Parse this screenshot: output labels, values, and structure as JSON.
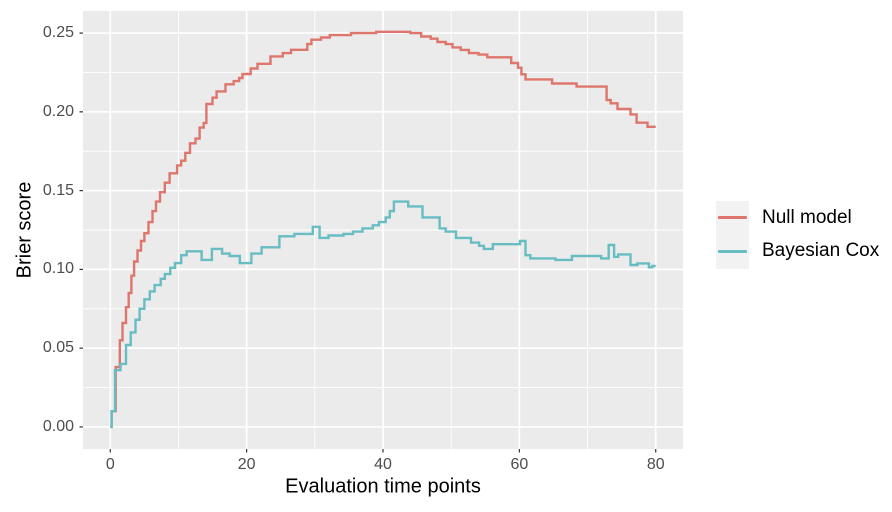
{
  "figure": {
    "background": "#FFFFFF"
  },
  "chart_data": {
    "type": "line",
    "subtype": "step",
    "title": "",
    "xlabel": "Evaluation time points",
    "ylabel": "Brier score",
    "xlim": [
      -4,
      84
    ],
    "ylim": [
      -0.014,
      0.264
    ],
    "grid": true,
    "legend_position": "right",
    "panel_background": "#EBEBEB",
    "gridline_color": "#FFFFFF",
    "tick_color": "#333333",
    "tick_label_color": "#4D4D4D",
    "legend_key_background": "#F2F2F2",
    "x_ticks": {
      "values": [
        0,
        20,
        40,
        60,
        80
      ],
      "labels": [
        "0",
        "20",
        "40",
        "60",
        "80"
      ]
    },
    "y_ticks": {
      "values": [
        0.0,
        0.05,
        0.1,
        0.15,
        0.2,
        0.25
      ],
      "labels": [
        "0.00",
        "0.05",
        "0.10",
        "0.15",
        "0.20",
        "0.25"
      ]
    },
    "x_minor": [
      10,
      30,
      50,
      70
    ],
    "y_minor": [
      0.025,
      0.075,
      0.125,
      0.175,
      0.225
    ],
    "x_end": 80,
    "series": [
      {
        "name": "Null model",
        "color": "#DE766D",
        "points": [
          [
            0,
            0.0
          ],
          [
            0.2,
            0.01
          ],
          [
            0.8,
            0.038
          ],
          [
            1.4,
            0.055
          ],
          [
            1.8,
            0.066
          ],
          [
            2.3,
            0.076
          ],
          [
            2.7,
            0.085
          ],
          [
            3.1,
            0.096
          ],
          [
            3.5,
            0.105
          ],
          [
            4.0,
            0.112
          ],
          [
            4.5,
            0.118
          ],
          [
            5.0,
            0.123
          ],
          [
            5.6,
            0.13
          ],
          [
            6.2,
            0.137
          ],
          [
            6.7,
            0.143
          ],
          [
            7.3,
            0.149
          ],
          [
            8.0,
            0.155
          ],
          [
            8.7,
            0.161
          ],
          [
            9.8,
            0.166
          ],
          [
            10.4,
            0.169
          ],
          [
            11.0,
            0.174
          ],
          [
            11.7,
            0.18
          ],
          [
            12.5,
            0.183
          ],
          [
            13.1,
            0.19
          ],
          [
            13.7,
            0.193
          ],
          [
            14.1,
            0.205
          ],
          [
            15.0,
            0.209
          ],
          [
            15.6,
            0.213
          ],
          [
            16.9,
            0.2175
          ],
          [
            18.1,
            0.2195
          ],
          [
            18.9,
            0.2215
          ],
          [
            19.4,
            0.224
          ],
          [
            20.6,
            0.2275
          ],
          [
            21.6,
            0.2305
          ],
          [
            23.5,
            0.2352
          ],
          [
            25.3,
            0.2373
          ],
          [
            26.5,
            0.2394
          ],
          [
            28.9,
            0.243
          ],
          [
            29.5,
            0.2458
          ],
          [
            30.9,
            0.2472
          ],
          [
            32.2,
            0.2487
          ],
          [
            35.3,
            0.25
          ],
          [
            39.0,
            0.2508
          ],
          [
            44.0,
            0.25
          ],
          [
            45.6,
            0.2478
          ],
          [
            47.0,
            0.2464
          ],
          [
            48.0,
            0.2443
          ],
          [
            49.2,
            0.243
          ],
          [
            50.2,
            0.2409
          ],
          [
            51.4,
            0.2393
          ],
          [
            52.6,
            0.2373
          ],
          [
            54.0,
            0.2363
          ],
          [
            55.3,
            0.2346
          ],
          [
            58.8,
            0.231
          ],
          [
            59.8,
            0.228
          ],
          [
            60.3,
            0.2238
          ],
          [
            60.9,
            0.2206
          ],
          [
            64.8,
            0.218
          ],
          [
            68.4,
            0.216
          ],
          [
            72.8,
            0.2075
          ],
          [
            73.4,
            0.2054
          ],
          [
            74.4,
            0.2018
          ],
          [
            76.3,
            0.1984
          ],
          [
            77.2,
            0.1931
          ],
          [
            78.8,
            0.1905
          ]
        ]
      },
      {
        "name": "Bayesian Cox",
        "color": "#68BDC2",
        "points": [
          [
            0,
            0.0
          ],
          [
            0.2,
            0.01
          ],
          [
            0.7,
            0.036
          ],
          [
            1.5,
            0.04
          ],
          [
            2.3,
            0.052
          ],
          [
            3.0,
            0.06
          ],
          [
            3.7,
            0.068
          ],
          [
            4.3,
            0.075
          ],
          [
            5.0,
            0.081
          ],
          [
            5.8,
            0.086
          ],
          [
            6.5,
            0.09
          ],
          [
            7.4,
            0.094
          ],
          [
            8.0,
            0.097
          ],
          [
            8.8,
            0.101
          ],
          [
            9.5,
            0.104
          ],
          [
            10.4,
            0.109
          ],
          [
            11.2,
            0.1115
          ],
          [
            13.4,
            0.106
          ],
          [
            14.9,
            0.113
          ],
          [
            16.4,
            0.11
          ],
          [
            17.5,
            0.1085
          ],
          [
            19.0,
            0.104
          ],
          [
            20.7,
            0.11
          ],
          [
            22.2,
            0.114
          ],
          [
            24.8,
            0.121
          ],
          [
            27.0,
            0.1225
          ],
          [
            29.7,
            0.127
          ],
          [
            30.7,
            0.12
          ],
          [
            32.0,
            0.1215
          ],
          [
            34.2,
            0.1225
          ],
          [
            35.6,
            0.124
          ],
          [
            37.0,
            0.126
          ],
          [
            38.5,
            0.128
          ],
          [
            39.4,
            0.13
          ],
          [
            40.4,
            0.133
          ],
          [
            41.0,
            0.137
          ],
          [
            41.6,
            0.143
          ],
          [
            43.7,
            0.14
          ],
          [
            45.8,
            0.133
          ],
          [
            48.3,
            0.126
          ],
          [
            49.2,
            0.124
          ],
          [
            50.7,
            0.12
          ],
          [
            52.9,
            0.117
          ],
          [
            54.1,
            0.115
          ],
          [
            54.8,
            0.113
          ],
          [
            56.1,
            0.116
          ],
          [
            60.1,
            0.118
          ],
          [
            60.9,
            0.109
          ],
          [
            61.6,
            0.107
          ],
          [
            65.3,
            0.106
          ],
          [
            67.7,
            0.1085
          ],
          [
            72.0,
            0.107
          ],
          [
            73.1,
            0.1155
          ],
          [
            73.9,
            0.108
          ],
          [
            74.5,
            0.1095
          ],
          [
            76.3,
            0.1028
          ],
          [
            77.3,
            0.1038
          ],
          [
            79.0,
            0.1013
          ],
          [
            79.5,
            0.1022
          ]
        ]
      }
    ]
  }
}
